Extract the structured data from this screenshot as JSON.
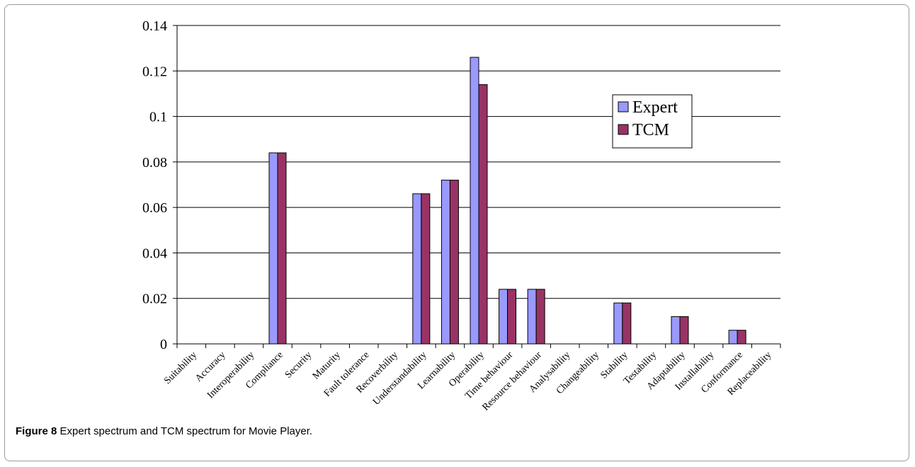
{
  "caption": {
    "label": "Figure 8",
    "text": "Expert spectrum and TCM spectrum for Movie Player."
  },
  "chart_data": {
    "type": "bar",
    "title": "",
    "xlabel": "",
    "ylabel": "",
    "ylim": [
      0,
      0.14
    ],
    "yticks": [
      "0",
      "0.02",
      "0.04",
      "0.06",
      "0.08",
      "0.1",
      "0.12",
      "0.14"
    ],
    "grid": true,
    "legend_position": "top-right",
    "categories": [
      "Suitability",
      "Accuracy",
      "Interoperability",
      "Compliance",
      "Security",
      "Maturity",
      "Fault tolerance",
      "Recoverbility",
      "Understandability",
      "Learnability",
      "Operability",
      "Time behaviour",
      "Resource behaviour",
      "Analysability",
      "Changeability",
      "Stability",
      "Testability",
      "Adaptability",
      "Installability",
      "Conformance",
      "Replaceability"
    ],
    "series": [
      {
        "name": "Expert",
        "color": "#9999ff",
        "values": [
          0,
          0,
          0,
          0.084,
          0,
          0,
          0,
          0,
          0.066,
          0.072,
          0.126,
          0.024,
          0.024,
          0,
          0,
          0.018,
          0,
          0.012,
          0,
          0.006,
          0
        ]
      },
      {
        "name": "TCM",
        "color": "#993366",
        "values": [
          0,
          0,
          0,
          0.084,
          0,
          0,
          0,
          0,
          0.066,
          0.072,
          0.114,
          0.024,
          0.024,
          0,
          0,
          0.018,
          0,
          0.012,
          0,
          0.006,
          0
        ]
      }
    ]
  }
}
